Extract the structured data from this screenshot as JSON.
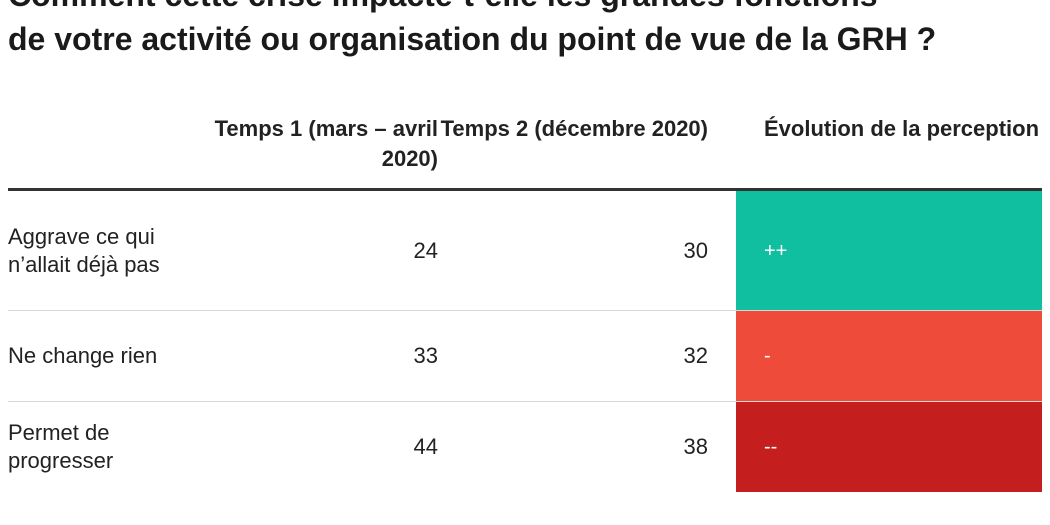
{
  "title_line1": "Comment cette crise impacte-t-elle les grandes fonctions",
  "title_line2": "de votre activité ou organisation du point de vue de la GRH ?",
  "chart_data": {
    "type": "table",
    "columns": [
      "",
      "Temps 1 (mars – avril 2020)",
      "Temps 2 (décembre 2020)",
      "Évolution de la perception"
    ],
    "rows": [
      {
        "label": "Aggrave ce qui n’allait déjà pas",
        "t1": "24",
        "t2": "30",
        "evolution": "++",
        "color": "#10bea0"
      },
      {
        "label": "Ne change rien",
        "t1": "33",
        "t2": "32",
        "evolution": "-",
        "color": "#ef4b3b"
      },
      {
        "label": "Permet de progresser",
        "t1": "44",
        "t2": "38",
        "evolution": "--",
        "color": "#c51e1e"
      }
    ]
  }
}
